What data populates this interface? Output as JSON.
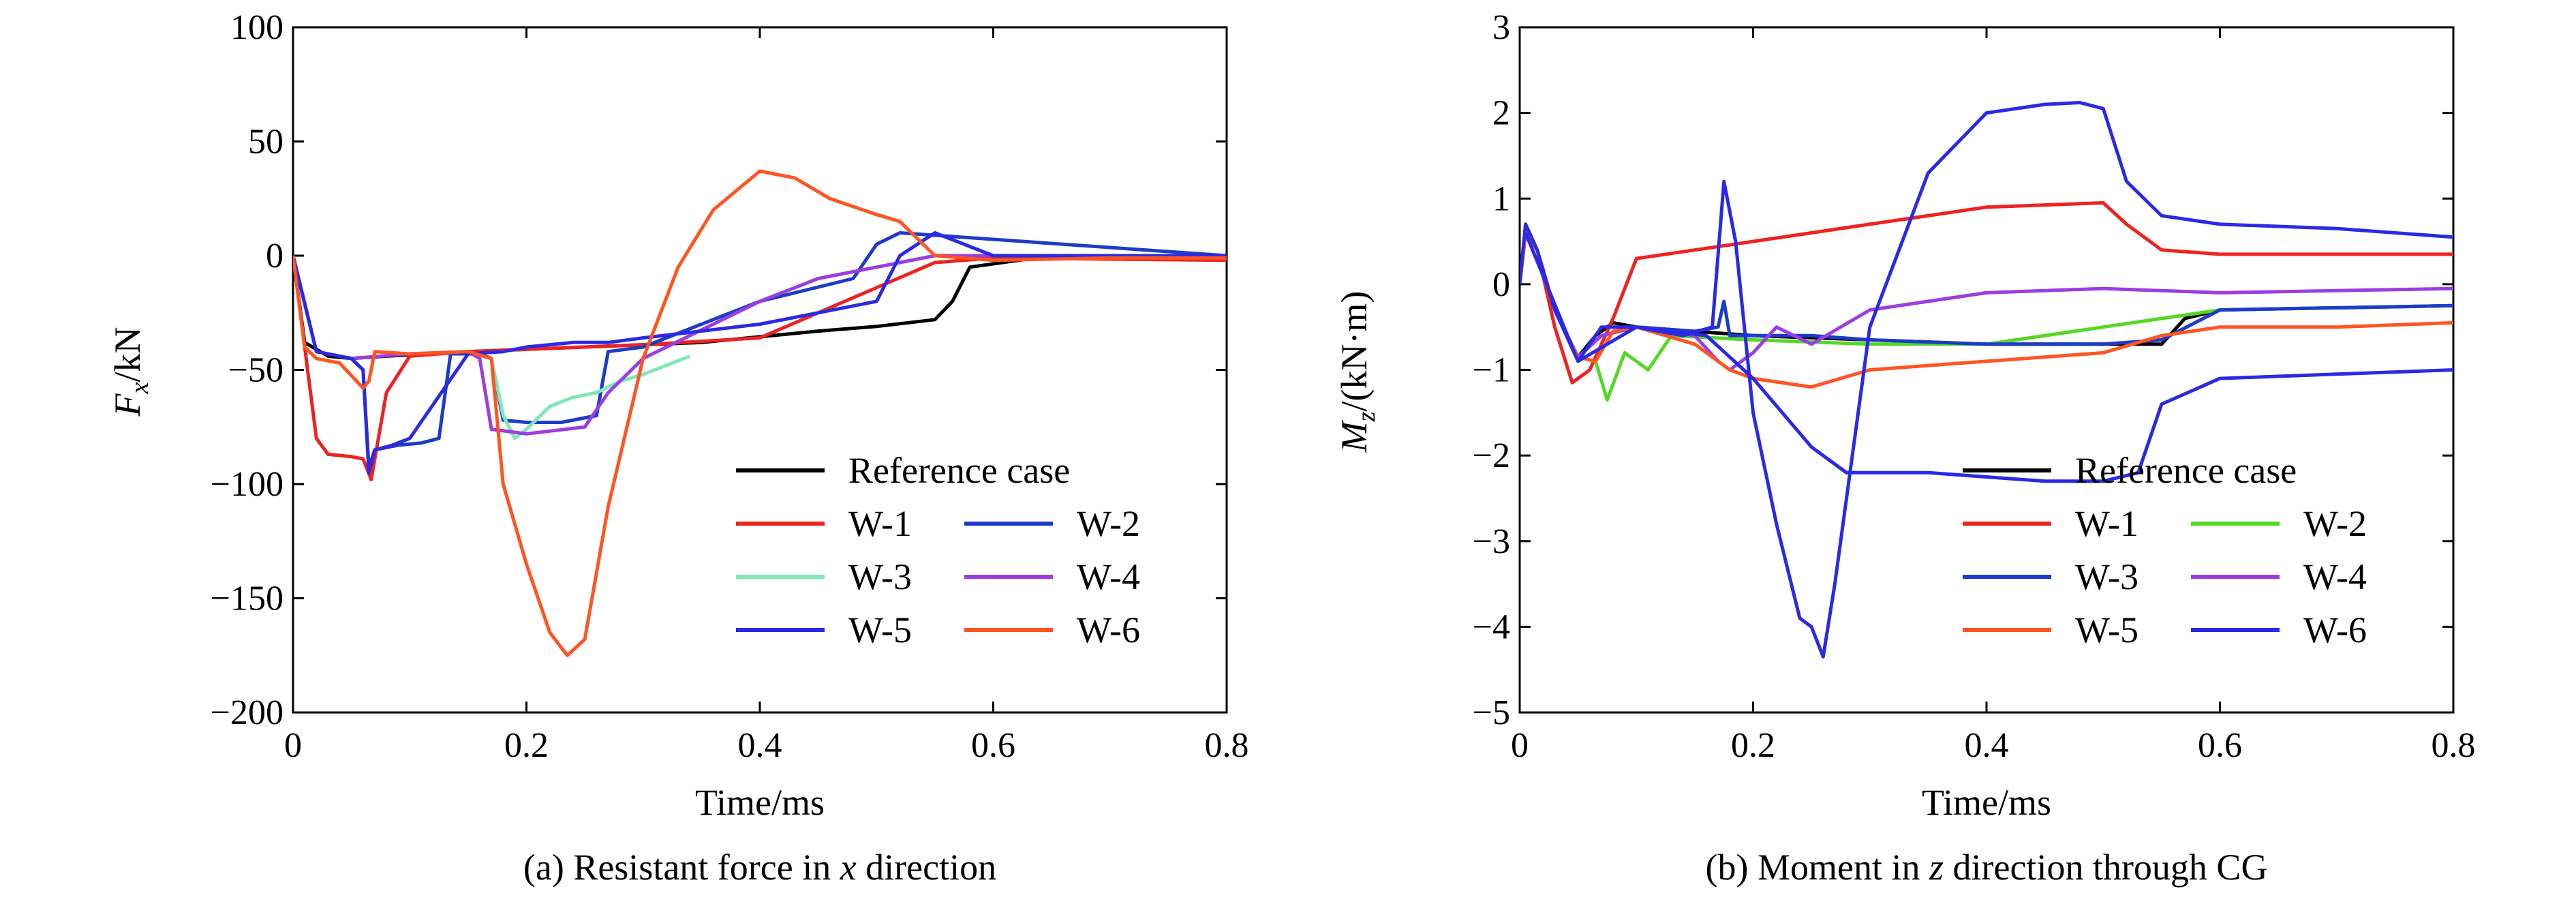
{
  "chart_data": [
    {
      "type": "line",
      "caption": "(a) Resistant force in x direction",
      "xlabel": "Time/ms",
      "ylabel": "F_x/kN",
      "xlim": [
        0,
        0.8
      ],
      "ylim": [
        -200,
        100
      ],
      "xticks": [
        "0",
        "0.2",
        "0.4",
        "0.6",
        "0.8"
      ],
      "yticks": [
        "100",
        "50",
        "0",
        "−50",
        "−100",
        "−150",
        "−200"
      ],
      "legend": {
        "position": "lower-right",
        "entries": [
          {
            "label": "Reference case",
            "color": "#000000"
          },
          {
            "label": "W-1",
            "color": "#ee2222"
          },
          {
            "label": "W-2",
            "color": "#1c3cc8"
          },
          {
            "label": "W-3",
            "color": "#7ee8b8"
          },
          {
            "label": "W-4",
            "color": "#9b3ee0"
          },
          {
            "label": "W-5",
            "color": "#2a2ae6"
          },
          {
            "label": "W-6",
            "color": "#ff5522"
          }
        ]
      },
      "series": [
        {
          "name": "Reference case",
          "color": "#000000",
          "x": [
            0,
            0.01,
            0.03,
            0.05,
            0.08,
            0.15,
            0.25,
            0.35,
            0.45,
            0.5,
            0.55,
            0.565,
            0.58,
            0.65,
            0.8
          ],
          "y": [
            0,
            -38,
            -44,
            -45,
            -44,
            -42,
            -40,
            -38,
            -33,
            -31,
            -28,
            -20,
            -5,
            0,
            -1
          ]
        },
        {
          "name": "W-1",
          "color": "#ee2222",
          "x": [
            0,
            0.01,
            0.02,
            0.03,
            0.05,
            0.06,
            0.067,
            0.08,
            0.1,
            0.15,
            0.2,
            0.3,
            0.4,
            0.55,
            0.6,
            0.8
          ],
          "y": [
            0,
            -40,
            -80,
            -87,
            -88,
            -89,
            -98,
            -60,
            -44,
            -42,
            -41,
            -39,
            -36,
            -3,
            -1,
            -2
          ]
        },
        {
          "name": "W-2",
          "color": "#1c3cc8",
          "x": [
            0,
            0.02,
            0.05,
            0.06,
            0.065,
            0.07,
            0.09,
            0.11,
            0.125,
            0.135,
            0.16,
            0.17,
            0.18,
            0.2,
            0.23,
            0.26,
            0.27,
            0.3,
            0.4,
            0.48,
            0.5,
            0.52,
            0.8
          ],
          "y": [
            0,
            -42,
            -45,
            -50,
            -93,
            -85,
            -83,
            -82,
            -80,
            -43,
            -43,
            -45,
            -72,
            -73,
            -73,
            -70,
            -42,
            -40,
            -20,
            -10,
            5,
            10,
            0
          ]
        },
        {
          "name": "W-3",
          "color": "#7ee8b8",
          "x": [
            0.17,
            0.18,
            0.19,
            0.2,
            0.22,
            0.24,
            0.26,
            0.28,
            0.3,
            0.32,
            0.34
          ],
          "y": [
            -45,
            -70,
            -80,
            -76,
            -66,
            -62,
            -60,
            -55,
            -52,
            -48,
            -44
          ]
        },
        {
          "name": "W-4",
          "color": "#9b3ee0",
          "x": [
            0,
            0.02,
            0.05,
            0.1,
            0.15,
            0.16,
            0.17,
            0.2,
            0.25,
            0.27,
            0.3,
            0.4,
            0.45,
            0.5,
            0.55,
            0.6,
            0.8
          ],
          "y": [
            0,
            -42,
            -45,
            -43,
            -42,
            -45,
            -76,
            -78,
            -75,
            -60,
            -45,
            -20,
            -10,
            -5,
            0,
            0,
            0
          ]
        },
        {
          "name": "W-5",
          "color": "#2a2ae6",
          "x": [
            0,
            0.02,
            0.05,
            0.06,
            0.065,
            0.07,
            0.085,
            0.1,
            0.15,
            0.18,
            0.2,
            0.24,
            0.27,
            0.3,
            0.4,
            0.5,
            0.52,
            0.55,
            0.6,
            0.8
          ],
          "y": [
            0,
            -42,
            -45,
            -50,
            -95,
            -85,
            -83,
            -80,
            -43,
            -42,
            -40,
            -38,
            -38,
            -36,
            -30,
            -20,
            0,
            10,
            0,
            0
          ]
        },
        {
          "name": "W-6",
          "color": "#ff5522",
          "x": [
            0,
            0.01,
            0.02,
            0.04,
            0.06,
            0.065,
            0.07,
            0.1,
            0.15,
            0.17,
            0.18,
            0.2,
            0.22,
            0.235,
            0.25,
            0.27,
            0.3,
            0.33,
            0.36,
            0.4,
            0.43,
            0.46,
            0.5,
            0.52,
            0.55,
            0.6,
            0.7,
            0.8
          ],
          "y": [
            0,
            -40,
            -45,
            -47,
            -58,
            -55,
            -42,
            -43,
            -42,
            -45,
            -100,
            -135,
            -165,
            -175,
            -168,
            -110,
            -45,
            -5,
            20,
            37,
            34,
            25,
            18,
            15,
            0,
            -2,
            -1,
            -1
          ]
        }
      ]
    },
    {
      "type": "line",
      "caption": "(b) Moment in z direction through CG",
      "xlabel": "Time/ms",
      "ylabel": "M_z/(kN·m)",
      "xlim": [
        0,
        0.8
      ],
      "ylim": [
        -5,
        3
      ],
      "xticks": [
        "0",
        "0.2",
        "0.4",
        "0.6",
        "0.8"
      ],
      "yticks": [
        "3",
        "2",
        "1",
        "0",
        "−1",
        "−2",
        "−3",
        "−4",
        "−5"
      ],
      "legend": {
        "position": "lower-right",
        "entries": [
          {
            "label": "Reference case",
            "color": "#000000"
          },
          {
            "label": "W-1",
            "color": "#ee2222"
          },
          {
            "label": "W-2",
            "color": "#55d825"
          },
          {
            "label": "W-3",
            "color": "#1c3cc8"
          },
          {
            "label": "W-4",
            "color": "#9b3ee0"
          },
          {
            "label": "W-5",
            "color": "#ff5522"
          },
          {
            "label": "W-6",
            "color": "#2a2ae6"
          }
        ]
      },
      "series": [
        {
          "name": "Reference case",
          "color": "#000000",
          "x": [
            0,
            0.005,
            0.015,
            0.03,
            0.05,
            0.065,
            0.08,
            0.1,
            0.2,
            0.3,
            0.4,
            0.5,
            0.55,
            0.57,
            0.6,
            0.8
          ],
          "y": [
            0,
            0.6,
            0.4,
            -0.3,
            -0.85,
            -0.6,
            -0.45,
            -0.5,
            -0.6,
            -0.65,
            -0.7,
            -0.7,
            -0.7,
            -0.4,
            -0.3,
            -0.25
          ]
        },
        {
          "name": "W-1",
          "color": "#ee2222",
          "x": [
            0,
            0.005,
            0.015,
            0.03,
            0.045,
            0.06,
            0.08,
            0.1,
            0.2,
            0.3,
            0.4,
            0.5,
            0.52,
            0.55,
            0.6,
            0.8
          ],
          "y": [
            0,
            0.7,
            0.4,
            -0.5,
            -1.15,
            -1.0,
            -0.4,
            0.3,
            0.5,
            0.7,
            0.9,
            0.95,
            0.7,
            0.4,
            0.35,
            0.35
          ]
        },
        {
          "name": "W-2",
          "color": "#55d825",
          "x": [
            0,
            0.005,
            0.015,
            0.03,
            0.05,
            0.065,
            0.075,
            0.09,
            0.11,
            0.13,
            0.2,
            0.3,
            0.4,
            0.5,
            0.6,
            0.8
          ],
          "y": [
            0,
            0.6,
            0.4,
            -0.3,
            -0.85,
            -0.9,
            -1.35,
            -0.8,
            -1.0,
            -0.6,
            -0.65,
            -0.7,
            -0.7,
            -0.5,
            -0.3,
            -0.25
          ]
        },
        {
          "name": "W-3",
          "color": "#1c3cc8",
          "x": [
            0,
            0.005,
            0.015,
            0.03,
            0.05,
            0.07,
            0.1,
            0.15,
            0.17,
            0.175,
            0.18,
            0.2,
            0.25,
            0.3,
            0.4,
            0.5,
            0.55,
            0.6,
            0.8
          ],
          "y": [
            0,
            0.6,
            0.4,
            -0.3,
            -0.85,
            -0.6,
            -0.5,
            -0.55,
            -0.5,
            -0.2,
            -0.6,
            -0.6,
            -0.6,
            -0.65,
            -0.7,
            -0.7,
            -0.65,
            -0.3,
            -0.25
          ]
        },
        {
          "name": "W-4",
          "color": "#9b3ee0",
          "x": [
            0,
            0.005,
            0.015,
            0.03,
            0.05,
            0.07,
            0.1,
            0.15,
            0.17,
            0.18,
            0.2,
            0.22,
            0.25,
            0.3,
            0.4,
            0.5,
            0.6,
            0.8
          ],
          "y": [
            0,
            0.6,
            0.4,
            -0.3,
            -0.85,
            -0.6,
            -0.5,
            -0.6,
            -0.9,
            -1.0,
            -0.8,
            -0.5,
            -0.7,
            -0.3,
            -0.1,
            -0.05,
            -0.1,
            -0.05
          ]
        },
        {
          "name": "W-5",
          "color": "#ff5522",
          "x": [
            0,
            0.005,
            0.015,
            0.03,
            0.05,
            0.065,
            0.08,
            0.1,
            0.15,
            0.18,
            0.2,
            0.25,
            0.3,
            0.4,
            0.5,
            0.55,
            0.6,
            0.7,
            0.8
          ],
          "y": [
            0,
            0.6,
            0.4,
            -0.3,
            -0.85,
            -0.9,
            -0.55,
            -0.5,
            -0.7,
            -1.0,
            -1.1,
            -1.2,
            -1.0,
            -0.9,
            -0.8,
            -0.6,
            -0.5,
            -0.5,
            -0.45
          ]
        },
        {
          "name": "W-6",
          "color": "#2a2ae6",
          "x": [
            0,
            0.005,
            0.015,
            0.03,
            0.05,
            0.07,
            0.1,
            0.14,
            0.165,
            0.175,
            0.185,
            0.2,
            0.22,
            0.24,
            0.25,
            0.26,
            0.27,
            0.3,
            0.35,
            0.4,
            0.45,
            0.48,
            0.5,
            0.52,
            0.55,
            0.6,
            0.7,
            0.8,
            0.005,
            0.05,
            0.1,
            0.16,
            0.2,
            0.25,
            0.28,
            0.35,
            0.45,
            0.5,
            0.53,
            0.55,
            0.6,
            0.7,
            0.8
          ],
          "y": [
            0,
            0.7,
            0.4,
            -0.3,
            -0.9,
            -0.5,
            -0.5,
            -0.6,
            -0.5,
            1.2,
            0.5,
            -1.5,
            -2.8,
            -3.9,
            -4.0,
            -4.35,
            -3.5,
            -0.5,
            1.3,
            2.0,
            2.1,
            2.12,
            2.05,
            1.2,
            0.8,
            0.7,
            0.65,
            0.55,
            0.6,
            -0.9,
            -0.5,
            -0.6,
            -1.1,
            -1.9,
            -2.2,
            -2.2,
            -2.3,
            -2.3,
            -2.2,
            -1.4,
            -1.1,
            -1.05,
            -1.0
          ]
        }
      ]
    }
  ]
}
